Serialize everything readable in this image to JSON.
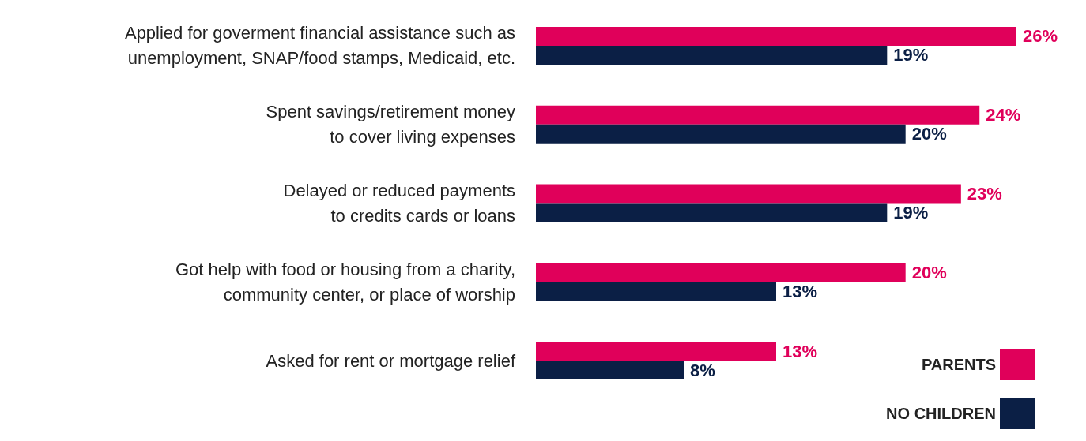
{
  "chart_data": {
    "type": "bar",
    "orientation": "horizontal",
    "categories": [
      "Applied for goverment financial assistance such as\nunemployment, SNAP/food stamps, Medicaid, etc.",
      "Spent savings/retirement money\nto cover living expenses",
      "Delayed or reduced payments\nto credits cards or loans",
      "Got help with food or housing from a charity,\ncommunity center, or place of worship",
      "Asked for rent or mortgage relief"
    ],
    "series": [
      {
        "name": "PARENTS",
        "color": "#e0005a",
        "values": [
          26,
          24,
          23,
          20,
          13
        ],
        "value_labels": [
          "26%",
          "24%",
          "23%",
          "20%",
          "13%"
        ]
      },
      {
        "name": "NO CHILDREN",
        "color": "#0b1f45",
        "values": [
          19,
          20,
          19,
          13,
          8
        ],
        "value_labels": [
          "19%",
          "20%",
          "19%",
          "13%",
          "8%"
        ]
      }
    ],
    "grid": false,
    "legend": "bottom right"
  }
}
